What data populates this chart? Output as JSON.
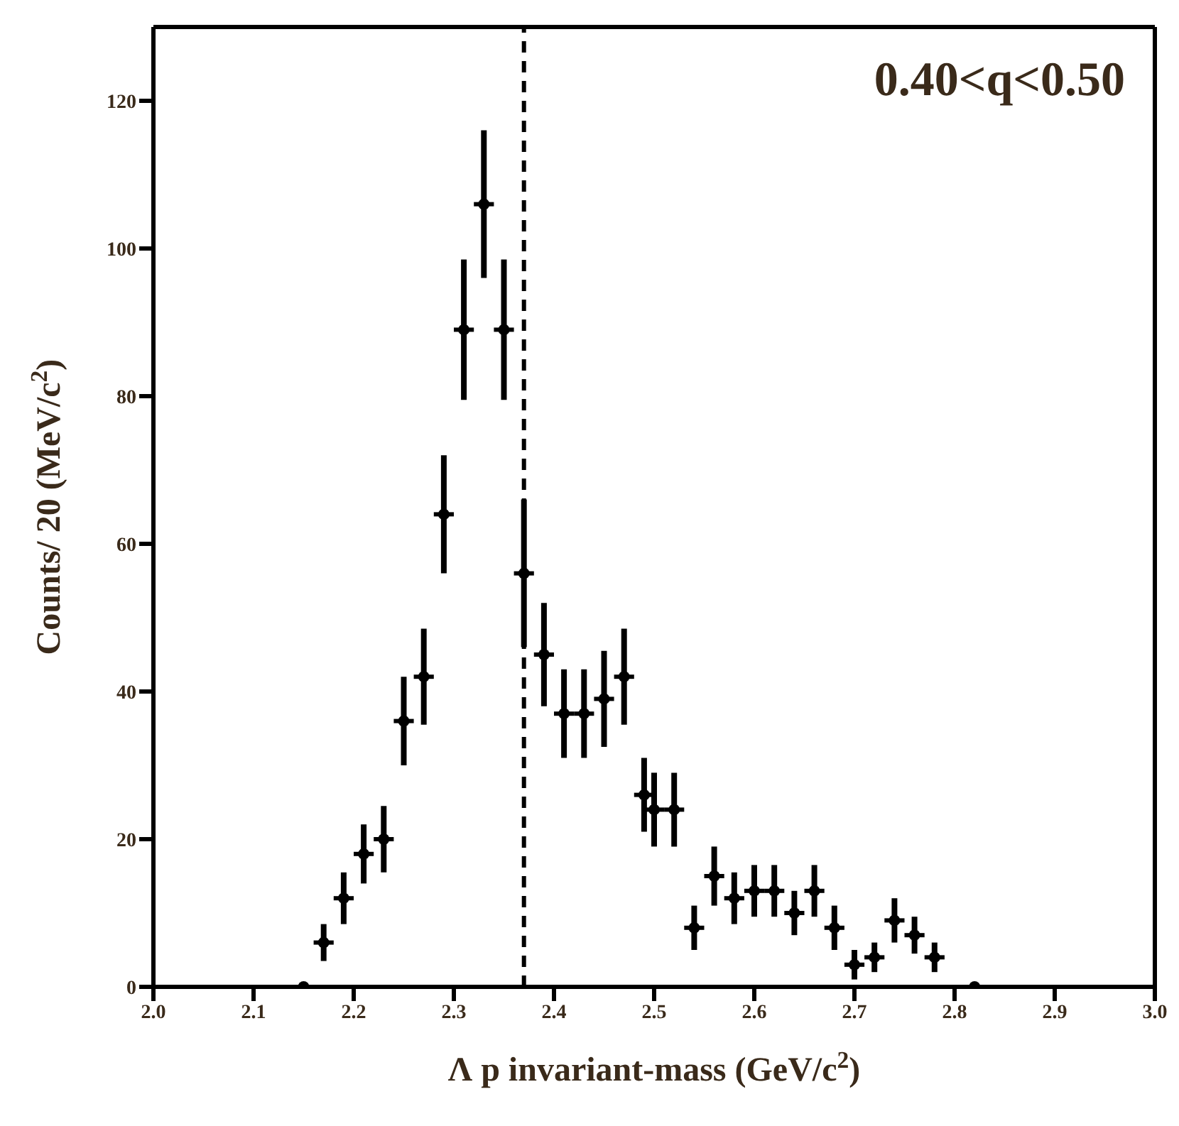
{
  "chart_data": {
    "type": "scatter",
    "xlabel": "Λ p invariant-mass (GeV/c$^{2}$)",
    "ylabel": "Counts/ 20 (MeV/c$^{2}$)",
    "annotations": [
      "0.40<q<0.50"
    ],
    "series": [
      {
        "color": "#000000",
        "marker": "circle",
        "x": [
          2.15,
          2.17,
          2.19,
          2.21,
          2.23,
          2.25,
          2.27,
          2.29,
          2.31,
          2.33,
          2.35,
          2.37,
          2.39,
          2.41,
          2.43,
          2.45,
          2.47,
          2.49,
          2.5,
          2.52,
          2.54,
          2.56,
          2.58,
          2.6,
          2.62,
          2.64,
          2.66,
          2.68,
          2.7,
          2.72,
          2.74,
          2.76,
          2.78,
          2.82
        ],
        "values": [
          0,
          6,
          12,
          18,
          20,
          36,
          42,
          64,
          89,
          106,
          89,
          56,
          45,
          37,
          37,
          39,
          42,
          26,
          24,
          24,
          8,
          15,
          12,
          13,
          13,
          10,
          13,
          8,
          3,
          4,
          9,
          7,
          4,
          0
        ],
        "errors": [
          null,
          2.5,
          3.5,
          4,
          4.5,
          6,
          6.5,
          8,
          9.5,
          10,
          9.5,
          10,
          7,
          6,
          6,
          6.5,
          6.5,
          5,
          5,
          5,
          3,
          4,
          3.5,
          3.5,
          3.5,
          3,
          3.5,
          3,
          2,
          2,
          3,
          2.5,
          2,
          null
        ],
        "xerrors": [
          0.01,
          0.01,
          0.01,
          0.01,
          0.01,
          0.01,
          0.01,
          0.01,
          0.01,
          0.01,
          0.01,
          0.01,
          0.01,
          0.01,
          0.01,
          0.01,
          0.01,
          0.01,
          0.01,
          0.01,
          0.01,
          0.01,
          0.01,
          0.01,
          0.01,
          0.01,
          0.01,
          0.01,
          0.01,
          0.01,
          0.01,
          0.01,
          0.01,
          0.01
        ]
      }
    ],
    "xlim": [
      2.0,
      3.0
    ],
    "xticks": [
      {
        "value": 2,
        "label": "2.0"
      },
      2.1,
      2.2,
      2.3,
      2.4,
      2.5,
      2.6,
      2.7,
      2.8,
      2.9,
      {
        "value": 3,
        "label": "3.0"
      }
    ],
    "ylim": [
      0,
      130
    ],
    "yticks": [
      0,
      20,
      40,
      60,
      80,
      100,
      120
    ],
    "ref_lines": [
      {
        "axis": "x",
        "value": 2.37,
        "line_style": "dashed",
        "color": "#000000"
      }
    ],
    "grid": false,
    "legend": false
  }
}
